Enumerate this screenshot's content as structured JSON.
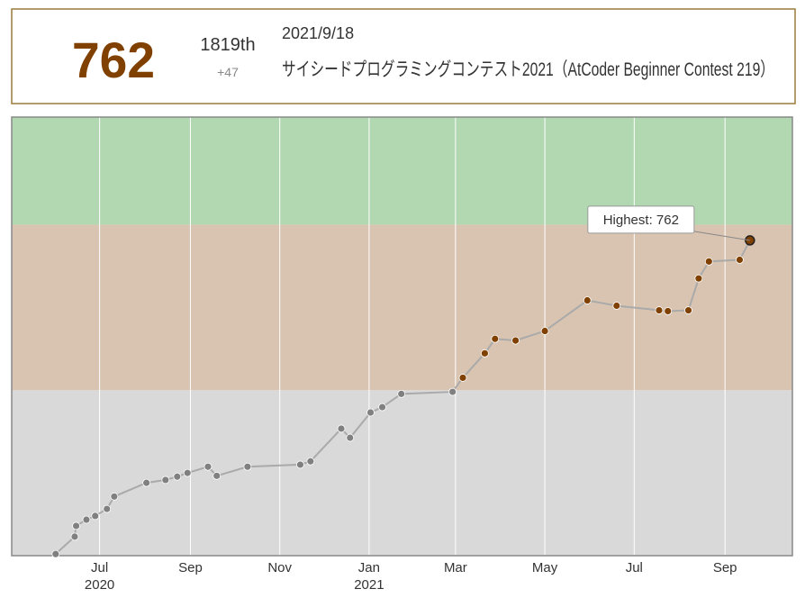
{
  "header": {
    "rating": 762,
    "rank": "1819th",
    "diff": "+47",
    "date": "2021/9/18",
    "contest": "サイシードプログラミングコンテスト2021（AtCoder Beginner Contest 219）"
  },
  "chart_data": {
    "type": "line",
    "x": [
      "2020-06-01",
      "2020-06-14",
      "2020-06-15",
      "2020-06-22",
      "2020-06-28",
      "2020-07-06",
      "2020-07-11",
      "2020-08-02",
      "2020-08-15",
      "2020-08-23",
      "2020-08-30",
      "2020-09-13",
      "2020-09-19",
      "2020-10-10",
      "2020-11-15",
      "2020-11-22",
      "2020-12-13",
      "2020-12-19",
      "2021-01-02",
      "2021-01-10",
      "2021-01-23",
      "2021-02-27",
      "2021-03-06",
      "2021-03-21",
      "2021-03-28",
      "2021-04-11",
      "2021-05-01",
      "2021-05-30",
      "2021-06-19",
      "2021-07-18",
      "2021-07-24",
      "2021-08-07",
      "2021-08-14",
      "2021-08-21",
      "2021-09-11",
      "2021-09-18"
    ],
    "values": [
      4,
      46,
      72,
      87,
      96,
      113,
      143,
      176,
      183,
      191,
      200,
      215,
      193,
      215,
      220,
      228,
      307,
      285,
      346,
      359,
      391,
      396,
      430,
      489,
      524,
      520,
      543,
      617,
      604,
      593,
      591,
      593,
      670,
      711,
      715,
      762
    ],
    "xlim": [
      "2020-05-02",
      "2021-10-17"
    ],
    "xticks": [
      {
        "value": "2020-07",
        "label": "Jul",
        "year": "2020"
      },
      {
        "value": "2020-09",
        "label": "Sep"
      },
      {
        "value": "2020-11",
        "label": "Nov"
      },
      {
        "value": "2021-01",
        "label": "Jan",
        "year": "2021"
      },
      {
        "value": "2021-03",
        "label": "Mar"
      },
      {
        "value": "2021-05",
        "label": "May"
      },
      {
        "value": "2021-07",
        "label": "Jul"
      },
      {
        "value": "2021-09",
        "label": "Sep"
      }
    ],
    "ylim": [
      0,
      1060
    ],
    "grid": true,
    "line_color": "#aaaaaa",
    "bands": [
      {
        "from": 0,
        "to": 400,
        "color": "#d9d9d9",
        "point": "#808080"
      },
      {
        "from": 400,
        "to": 800,
        "color": "#d9c4b1",
        "point": "#804000"
      },
      {
        "from": 800,
        "to": 1200,
        "color": "#b2d8b1",
        "point": "#008000"
      }
    ],
    "annotation": "Highest: 762"
  }
}
